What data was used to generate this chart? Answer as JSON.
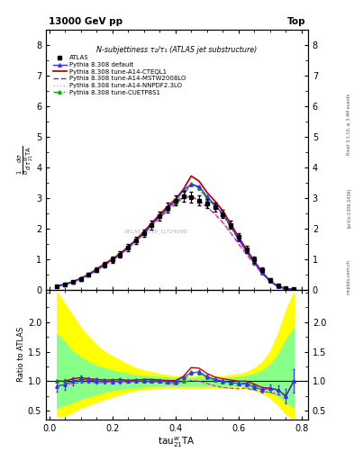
{
  "title_top": "13000 GeV pp",
  "title_right": "Top",
  "plot_title": "N-subjettiness τ₂/τ₁ (ATLAS jet substructure)",
  "ylabel_main": "$\\frac{1}{\\sigma}\\frac{d\\sigma}{d\\,\\tau^{W}_{21}\\mathrm{TA}}$",
  "ylabel_ratio": "Ratio to ATLAS",
  "watermark": "ATLAS_2019_I1724098",
  "rivet_text": "Rivet 3.1.10, ≥ 3.4M events",
  "arxiv_text": "[arXiv:1306.3436]",
  "mcplots_text": "mcplots.cern.ch",
  "ylim_main": [
    0,
    8.5
  ],
  "ylim_ratio": [
    0.35,
    2.55
  ],
  "yticks_main": [
    0,
    1,
    2,
    3,
    4,
    5,
    6,
    7,
    8
  ],
  "yticks_ratio": [
    0.5,
    1.0,
    1.5,
    2.0
  ],
  "xlim": [
    -0.01,
    0.82
  ],
  "xticks": [
    0.0,
    0.2,
    0.4,
    0.6,
    0.8
  ],
  "x": [
    0.025,
    0.05,
    0.075,
    0.1,
    0.125,
    0.15,
    0.175,
    0.2,
    0.225,
    0.25,
    0.275,
    0.3,
    0.325,
    0.35,
    0.375,
    0.4,
    0.425,
    0.45,
    0.475,
    0.5,
    0.525,
    0.55,
    0.575,
    0.6,
    0.625,
    0.65,
    0.675,
    0.7,
    0.725,
    0.75,
    0.775
  ],
  "atlas_y": [
    0.12,
    0.18,
    0.25,
    0.35,
    0.48,
    0.65,
    0.82,
    0.98,
    1.15,
    1.38,
    1.6,
    1.85,
    2.12,
    2.4,
    2.68,
    2.92,
    3.05,
    3.02,
    2.92,
    2.82,
    2.7,
    2.48,
    2.12,
    1.72,
    1.32,
    0.98,
    0.65,
    0.32,
    0.13,
    0.04,
    0.01
  ],
  "atlas_yerr": [
    0.03,
    0.04,
    0.04,
    0.05,
    0.06,
    0.07,
    0.08,
    0.09,
    0.1,
    0.11,
    0.12,
    0.13,
    0.14,
    0.15,
    0.16,
    0.17,
    0.17,
    0.17,
    0.16,
    0.16,
    0.15,
    0.14,
    0.13,
    0.12,
    0.11,
    0.1,
    0.08,
    0.06,
    0.04,
    0.02,
    0.01
  ],
  "pythia_default_y": [
    0.11,
    0.17,
    0.25,
    0.36,
    0.49,
    0.65,
    0.82,
    0.97,
    1.15,
    1.38,
    1.6,
    1.85,
    2.12,
    2.4,
    2.65,
    2.9,
    3.25,
    3.45,
    3.38,
    3.05,
    2.78,
    2.48,
    2.08,
    1.65,
    1.25,
    0.88,
    0.55,
    0.28,
    0.11,
    0.03,
    0.01
  ],
  "cteql1_y": [
    0.12,
    0.18,
    0.26,
    0.37,
    0.5,
    0.67,
    0.84,
    1.0,
    1.18,
    1.4,
    1.63,
    1.9,
    2.18,
    2.46,
    2.72,
    2.96,
    3.28,
    3.72,
    3.55,
    3.18,
    2.9,
    2.58,
    2.16,
    1.72,
    1.32,
    0.93,
    0.58,
    0.28,
    0.11,
    0.03,
    0.01
  ],
  "mstw_y": [
    0.11,
    0.17,
    0.24,
    0.34,
    0.47,
    0.63,
    0.8,
    0.96,
    1.14,
    1.36,
    1.58,
    1.83,
    2.1,
    2.36,
    2.58,
    2.8,
    3.02,
    3.05,
    2.92,
    2.7,
    2.48,
    2.2,
    1.86,
    1.5,
    1.16,
    0.83,
    0.53,
    0.26,
    0.1,
    0.03,
    0.01
  ],
  "nnpdf_y": [
    0.11,
    0.17,
    0.24,
    0.34,
    0.47,
    0.63,
    0.8,
    0.96,
    1.14,
    1.36,
    1.58,
    1.83,
    2.1,
    2.36,
    2.58,
    2.8,
    3.02,
    3.05,
    2.92,
    2.7,
    2.48,
    2.2,
    1.86,
    1.5,
    1.16,
    0.83,
    0.53,
    0.26,
    0.1,
    0.03,
    0.01
  ],
  "cuetp_y": [
    0.12,
    0.18,
    0.26,
    0.37,
    0.5,
    0.67,
    0.84,
    1.0,
    1.18,
    1.4,
    1.63,
    1.88,
    2.15,
    2.42,
    2.65,
    2.85,
    3.08,
    3.48,
    3.32,
    2.98,
    2.75,
    2.45,
    2.05,
    1.65,
    1.28,
    0.9,
    0.58,
    0.28,
    0.11,
    0.03,
    0.01
  ],
  "ratio_default": [
    0.92,
    0.94,
    1.0,
    1.03,
    1.02,
    1.0,
    1.0,
    0.99,
    1.0,
    1.0,
    1.0,
    1.0,
    1.0,
    1.0,
    0.99,
    0.99,
    1.07,
    1.14,
    1.16,
    1.08,
    1.03,
    1.0,
    0.98,
    0.96,
    0.95,
    0.9,
    0.85,
    0.88,
    0.85,
    0.75,
    1.0
  ],
  "ratio_default_err": [
    0.25,
    0.22,
    0.18,
    0.15,
    0.13,
    0.11,
    0.1,
    0.09,
    0.09,
    0.08,
    0.08,
    0.07,
    0.07,
    0.07,
    0.06,
    0.06,
    0.06,
    0.06,
    0.06,
    0.06,
    0.06,
    0.06,
    0.07,
    0.07,
    0.08,
    0.1,
    0.12,
    0.15,
    0.2,
    0.3,
    0.5
  ],
  "ratio_cteql1": [
    1.0,
    1.0,
    1.04,
    1.06,
    1.04,
    1.03,
    1.02,
    1.02,
    1.03,
    1.01,
    1.02,
    1.03,
    1.03,
    1.02,
    1.01,
    1.01,
    1.08,
    1.23,
    1.22,
    1.13,
    1.07,
    1.04,
    1.02,
    1.0,
    1.0,
    0.95,
    0.89,
    0.88,
    0.85,
    0.75,
    1.0
  ],
  "ratio_mstw": [
    0.92,
    0.94,
    0.96,
    0.97,
    0.98,
    0.97,
    0.98,
    0.98,
    0.99,
    0.99,
    0.99,
    0.99,
    0.99,
    0.98,
    0.96,
    0.96,
    0.99,
    1.01,
    1.0,
    0.96,
    0.92,
    0.89,
    0.88,
    0.87,
    0.88,
    0.85,
    0.82,
    0.81,
    0.77,
    0.75,
    1.0
  ],
  "ratio_nnpdf": [
    0.92,
    0.94,
    0.96,
    0.97,
    0.98,
    0.97,
    0.98,
    0.98,
    0.99,
    0.99,
    0.99,
    0.99,
    0.99,
    0.98,
    0.96,
    0.96,
    0.99,
    1.01,
    1.0,
    0.96,
    0.92,
    0.89,
    0.88,
    0.87,
    0.88,
    0.85,
    0.82,
    0.81,
    0.77,
    0.75,
    1.0
  ],
  "ratio_cuetp": [
    1.0,
    1.0,
    1.04,
    1.06,
    1.04,
    1.03,
    1.02,
    1.02,
    1.03,
    1.01,
    1.02,
    1.02,
    1.01,
    1.01,
    0.99,
    0.98,
    1.01,
    1.15,
    1.14,
    1.06,
    1.02,
    0.99,
    0.97,
    0.96,
    0.97,
    0.92,
    0.89,
    0.88,
    0.85,
    0.75,
    1.0
  ],
  "band_yellow_low": [
    0.4,
    0.42,
    0.48,
    0.55,
    0.6,
    0.65,
    0.7,
    0.74,
    0.78,
    0.82,
    0.85,
    0.87,
    0.88,
    0.89,
    0.9,
    0.9,
    0.9,
    0.9,
    0.9,
    0.9,
    0.9,
    0.9,
    0.9,
    0.9,
    0.88,
    0.85,
    0.8,
    0.72,
    0.6,
    0.45,
    0.35
  ],
  "band_yellow_high": [
    2.5,
    2.3,
    2.1,
    1.9,
    1.75,
    1.6,
    1.5,
    1.42,
    1.35,
    1.28,
    1.22,
    1.18,
    1.15,
    1.12,
    1.1,
    1.08,
    1.08,
    1.08,
    1.08,
    1.08,
    1.08,
    1.08,
    1.1,
    1.12,
    1.15,
    1.22,
    1.32,
    1.5,
    1.8,
    2.2,
    2.5
  ],
  "band_green_low": [
    0.55,
    0.6,
    0.65,
    0.7,
    0.74,
    0.78,
    0.82,
    0.85,
    0.87,
    0.89,
    0.9,
    0.91,
    0.92,
    0.93,
    0.93,
    0.93,
    0.93,
    0.93,
    0.93,
    0.93,
    0.93,
    0.93,
    0.93,
    0.92,
    0.91,
    0.89,
    0.86,
    0.82,
    0.75,
    0.65,
    0.55
  ],
  "band_green_high": [
    1.8,
    1.65,
    1.5,
    1.4,
    1.32,
    1.26,
    1.22,
    1.18,
    1.15,
    1.12,
    1.1,
    1.09,
    1.08,
    1.07,
    1.06,
    1.05,
    1.05,
    1.05,
    1.05,
    1.05,
    1.05,
    1.05,
    1.06,
    1.07,
    1.09,
    1.12,
    1.18,
    1.28,
    1.45,
    1.7,
    1.9
  ],
  "colors": {
    "atlas": "black",
    "pythia_default": "#3333ff",
    "cteql1": "#cc0000",
    "mstw": "#cc0099",
    "nnpdf": "#ff88cc",
    "cuetp": "#00aa00"
  },
  "legend_labels": [
    "ATLAS",
    "Pythia 8.308 default",
    "Pythia 8.308 tune-A14-CTEQL1",
    "Pythia 8.308 tune-A14-MSTW2008LO",
    "Pythia 8.308 tune-A14-NNPDF2.3LO",
    "Pythia 8.308 tune-CUETP8S1"
  ],
  "bg_color": "#ffffff"
}
